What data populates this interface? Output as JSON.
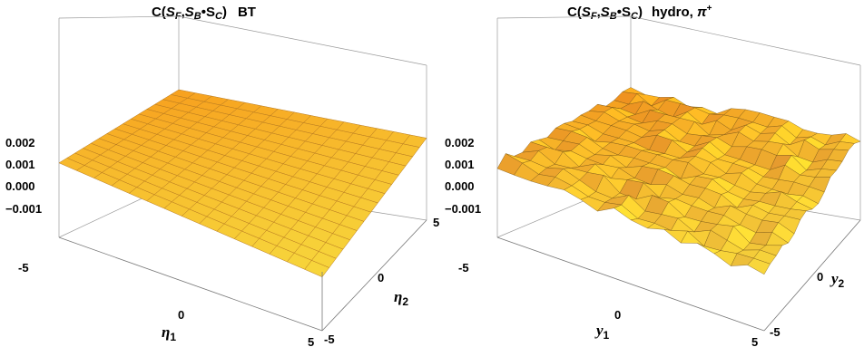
{
  "chart_data": [
    {
      "type": "surface3d",
      "title": "C(S_F,S_B•S_C)   BT",
      "title_parts": {
        "main": "C(",
        "SF": "S",
        "SF_sub": "F",
        "sep": ",",
        "SB": "S",
        "SB_sub": "B",
        "dot": "•S",
        "SC_sub": "C",
        "close": ")",
        "suffix": "BT"
      },
      "xlabel": "η",
      "xlabel_sub": "1",
      "ylabel": "η",
      "ylabel_sub": "2",
      "x_ticks": [
        "-5",
        "0",
        "5"
      ],
      "y_ticks": [
        "-5",
        "0",
        "5"
      ],
      "z_ticks": [
        "0.002",
        "0.001",
        "0.000",
        "−0.001"
      ],
      "x_range": [
        -5,
        5
      ],
      "y_range": [
        -5,
        5
      ],
      "z_range": [
        -0.0015,
        0.0025
      ],
      "surface": "plane",
      "corner_values": {
        "x-5_y-5": 0.0011,
        "x5_y-5": 0.0,
        "x-5_y5": 0.002,
        "x5_y5": 0.0015
      },
      "grid": 15,
      "colors": {
        "high": "#f5a623",
        "low": "#fdd835"
      }
    },
    {
      "type": "surface3d",
      "title": "C(S_F,S_B•S_C)  hydro, π+",
      "title_parts": {
        "main": "C(",
        "SF": "S",
        "SF_sub": "F",
        "sep": ",",
        "SB": "S",
        "SB_sub": "B",
        "dot": "•S",
        "SC_sub": "C",
        "close": ")",
        "suffix": "hydro, ",
        "pi": "π",
        "pi_sup": "+"
      },
      "xlabel": "y",
      "xlabel_sub": "1",
      "ylabel": "y",
      "ylabel_sub": "2",
      "x_ticks": [
        "-5",
        "0",
        "5"
      ],
      "y_ticks": [
        "-5",
        "0",
        "5"
      ],
      "z_ticks": [
        "0.002",
        "0.001",
        "0.000",
        "−0.001"
      ],
      "x_range": [
        -5,
        5
      ],
      "y_range": [
        -5,
        5
      ],
      "z_range": [
        -0.0015,
        0.0025
      ],
      "surface": "noisy-plane",
      "corner_values": {
        "x-5_y-5": 0.0011,
        "x5_y-5": 0.0,
        "x-5_y5": 0.002,
        "x5_y5": 0.0015
      },
      "grid": 16,
      "colors": {
        "high": "#f5a623",
        "low": "#fdd835"
      }
    }
  ]
}
